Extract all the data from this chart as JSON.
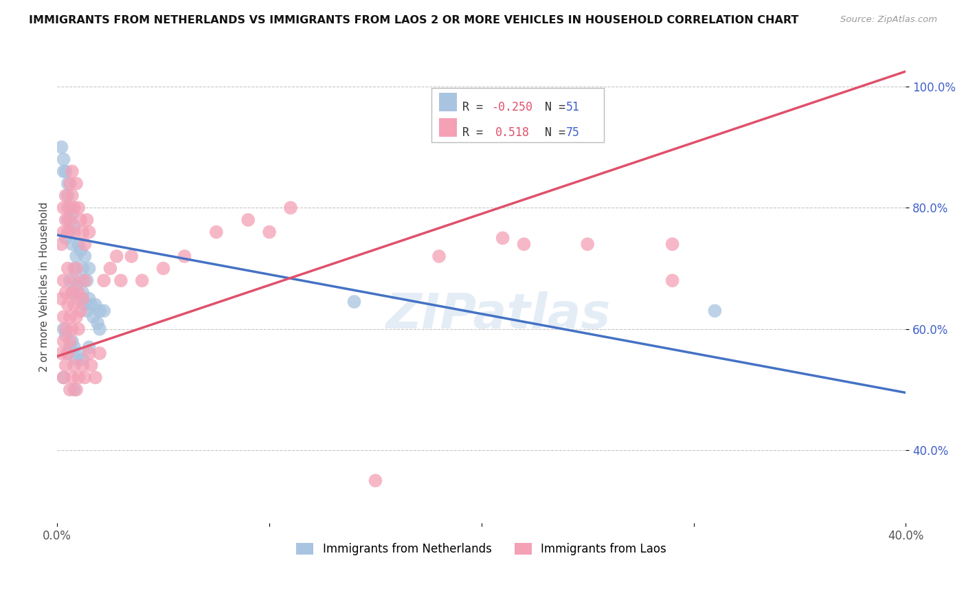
{
  "title": "IMMIGRANTS FROM NETHERLANDS VS IMMIGRANTS FROM LAOS 2 OR MORE VEHICLES IN HOUSEHOLD CORRELATION CHART",
  "source": "Source: ZipAtlas.com",
  "ylabel": "2 or more Vehicles in Household",
  "xlim": [
    0.0,
    0.4
  ],
  "ylim": [
    0.28,
    1.06
  ],
  "xtick_vals": [
    0.0,
    0.1,
    0.2,
    0.3,
    0.4
  ],
  "xtick_labels": [
    "0.0%",
    "",
    "",
    "",
    "40.0%"
  ],
  "ytick_vals": [
    0.4,
    0.6,
    0.8,
    1.0
  ],
  "ytick_labels": [
    "40.0%",
    "60.0%",
    "80.0%",
    "100.0%"
  ],
  "netherlands_color": "#a8c4e0",
  "laos_color": "#f4a0b5",
  "netherlands_R": -0.25,
  "netherlands_N": 51,
  "laos_R": 0.518,
  "laos_N": 75,
  "R_color": "#e0506a",
  "N_color": "#4060c8",
  "watermark": "ZIPatlas",
  "netherlands_line": {
    "x0": 0.0,
    "y0": 0.755,
    "x1": 0.4,
    "y1": 0.495
  },
  "laos_line": {
    "x0": 0.0,
    "y0": 0.555,
    "x1": 0.4,
    "y1": 1.025
  },
  "netherlands_line_color": "#4472c4",
  "laos_line_color": "#e0506a",
  "grid_color": "#c8c8c8",
  "background_color": "#ffffff",
  "netherlands_points": [
    [
      0.002,
      0.9
    ],
    [
      0.003,
      0.88
    ],
    [
      0.003,
      0.86
    ],
    [
      0.004,
      0.86
    ],
    [
      0.005,
      0.84
    ],
    [
      0.005,
      0.82
    ],
    [
      0.006,
      0.8
    ],
    [
      0.007,
      0.79
    ],
    [
      0.004,
      0.75
    ],
    [
      0.005,
      0.78
    ],
    [
      0.006,
      0.76
    ],
    [
      0.007,
      0.74
    ],
    [
      0.008,
      0.77
    ],
    [
      0.009,
      0.72
    ],
    [
      0.01,
      0.74
    ],
    [
      0.011,
      0.73
    ],
    [
      0.012,
      0.7
    ],
    [
      0.013,
      0.72
    ],
    [
      0.014,
      0.68
    ],
    [
      0.015,
      0.7
    ],
    [
      0.006,
      0.68
    ],
    [
      0.007,
      0.66
    ],
    [
      0.008,
      0.7
    ],
    [
      0.009,
      0.67
    ],
    [
      0.01,
      0.65
    ],
    [
      0.011,
      0.68
    ],
    [
      0.012,
      0.66
    ],
    [
      0.013,
      0.64
    ],
    [
      0.014,
      0.63
    ],
    [
      0.015,
      0.65
    ],
    [
      0.016,
      0.64
    ],
    [
      0.017,
      0.62
    ],
    [
      0.018,
      0.64
    ],
    [
      0.019,
      0.61
    ],
    [
      0.02,
      0.63
    ],
    [
      0.022,
      0.63
    ],
    [
      0.003,
      0.6
    ],
    [
      0.004,
      0.59
    ],
    [
      0.005,
      0.56
    ],
    [
      0.006,
      0.57
    ],
    [
      0.007,
      0.58
    ],
    [
      0.008,
      0.57
    ],
    [
      0.009,
      0.55
    ],
    [
      0.01,
      0.56
    ],
    [
      0.012,
      0.55
    ],
    [
      0.015,
      0.57
    ],
    [
      0.02,
      0.6
    ],
    [
      0.14,
      0.645
    ],
    [
      0.31,
      0.63
    ],
    [
      0.003,
      0.52
    ],
    [
      0.008,
      0.5
    ]
  ],
  "laos_points": [
    [
      0.002,
      0.65
    ],
    [
      0.003,
      0.62
    ],
    [
      0.003,
      0.68
    ],
    [
      0.004,
      0.6
    ],
    [
      0.004,
      0.66
    ],
    [
      0.005,
      0.64
    ],
    [
      0.005,
      0.7
    ],
    [
      0.006,
      0.58
    ],
    [
      0.006,
      0.62
    ],
    [
      0.007,
      0.66
    ],
    [
      0.007,
      0.6
    ],
    [
      0.008,
      0.68
    ],
    [
      0.008,
      0.64
    ],
    [
      0.009,
      0.7
    ],
    [
      0.009,
      0.62
    ],
    [
      0.01,
      0.66
    ],
    [
      0.01,
      0.6
    ],
    [
      0.011,
      0.63
    ],
    [
      0.012,
      0.65
    ],
    [
      0.013,
      0.68
    ],
    [
      0.002,
      0.74
    ],
    [
      0.003,
      0.76
    ],
    [
      0.003,
      0.8
    ],
    [
      0.004,
      0.78
    ],
    [
      0.004,
      0.82
    ],
    [
      0.005,
      0.76
    ],
    [
      0.005,
      0.8
    ],
    [
      0.006,
      0.84
    ],
    [
      0.006,
      0.78
    ],
    [
      0.007,
      0.82
    ],
    [
      0.007,
      0.86
    ],
    [
      0.008,
      0.8
    ],
    [
      0.008,
      0.76
    ],
    [
      0.009,
      0.84
    ],
    [
      0.01,
      0.8
    ],
    [
      0.011,
      0.78
    ],
    [
      0.012,
      0.76
    ],
    [
      0.013,
      0.74
    ],
    [
      0.014,
      0.78
    ],
    [
      0.015,
      0.76
    ],
    [
      0.002,
      0.56
    ],
    [
      0.003,
      0.58
    ],
    [
      0.003,
      0.52
    ],
    [
      0.004,
      0.54
    ],
    [
      0.005,
      0.56
    ],
    [
      0.006,
      0.5
    ],
    [
      0.007,
      0.52
    ],
    [
      0.008,
      0.54
    ],
    [
      0.009,
      0.5
    ],
    [
      0.01,
      0.52
    ],
    [
      0.012,
      0.54
    ],
    [
      0.013,
      0.52
    ],
    [
      0.015,
      0.56
    ],
    [
      0.016,
      0.54
    ],
    [
      0.018,
      0.52
    ],
    [
      0.02,
      0.56
    ],
    [
      0.022,
      0.68
    ],
    [
      0.025,
      0.7
    ],
    [
      0.028,
      0.72
    ],
    [
      0.03,
      0.68
    ],
    [
      0.035,
      0.72
    ],
    [
      0.04,
      0.68
    ],
    [
      0.05,
      0.7
    ],
    [
      0.06,
      0.72
    ],
    [
      0.075,
      0.76
    ],
    [
      0.09,
      0.78
    ],
    [
      0.1,
      0.76
    ],
    [
      0.11,
      0.8
    ],
    [
      0.18,
      0.72
    ],
    [
      0.21,
      0.75
    ],
    [
      0.22,
      0.74
    ],
    [
      0.25,
      0.74
    ],
    [
      0.29,
      0.74
    ],
    [
      0.29,
      0.68
    ],
    [
      0.15,
      0.35
    ]
  ]
}
